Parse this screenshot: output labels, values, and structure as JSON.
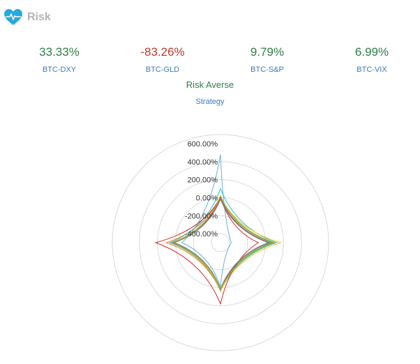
{
  "header": {
    "title": "Risk",
    "icon": "heartbeat-icon",
    "icon_color": "#29a8e0"
  },
  "metrics": [
    {
      "label": "BTC-DXY",
      "value": "33.33%",
      "color": "#2e7d4a"
    },
    {
      "label": "BTC-GLD",
      "value": "-83.26%",
      "color": "#c0392b"
    },
    {
      "label": "BTC-S&P",
      "value": "9.79%",
      "color": "#2e7d4a"
    },
    {
      "label": "BTC-VIX",
      "value": "6.99%",
      "color": "#2e7d4a"
    }
  ],
  "chart_title": "Risk Averse",
  "chart_subtitle": "Strategy",
  "chart_data": {
    "type": "radar",
    "title": "Risk Averse",
    "subtitle": "Strategy",
    "radial_range": [
      -500,
      700
    ],
    "radial_ticks": [
      600,
      400,
      200,
      0,
      -200,
      -400
    ],
    "radial_tick_labels": [
      "600.00%",
      "400.00%",
      "200.00%",
      "0.00%",
      "-200.00%",
      "-400.00%"
    ],
    "grid": true,
    "axes": 4,
    "series": [
      {
        "color": "#6baed6",
        "values": [
          480,
          -380,
          -10,
          -70
        ]
      },
      {
        "color": "#ff7f0e",
        "values": [
          20,
          80,
          40,
          100
        ]
      },
      {
        "color": "#17becf",
        "values": [
          100,
          120,
          40,
          60
        ]
      },
      {
        "color": "#ffbb33",
        "values": [
          10,
          170,
          40,
          40
        ]
      },
      {
        "color": "#2ca02c",
        "values": [
          20,
          80,
          30,
          30
        ]
      },
      {
        "color": "#8c564b",
        "values": [
          0,
          50,
          20,
          30
        ]
      },
      {
        "color": "#d62728",
        "values": [
          0,
          -80,
          180,
          220
        ]
      },
      {
        "color": "#9467bd",
        "values": [
          -10,
          30,
          20,
          20
        ]
      },
      {
        "color": "#bcbd22",
        "values": [
          20,
          100,
          30,
          20
        ]
      },
      {
        "color": "#7f7f7f",
        "values": [
          -20,
          40,
          10,
          10
        ]
      }
    ]
  }
}
